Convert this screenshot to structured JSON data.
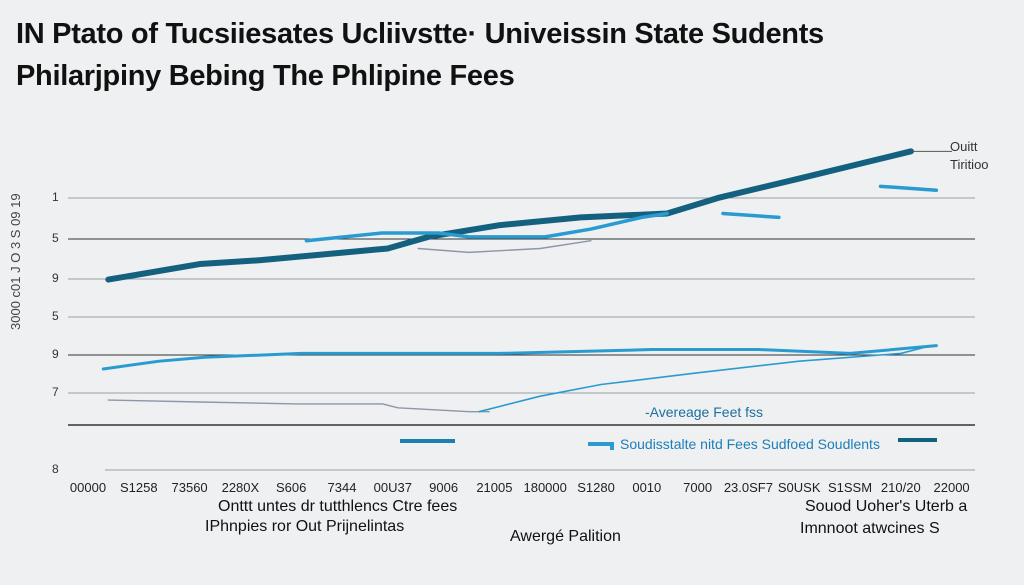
{
  "title": {
    "line1": "IN Ptato of Tucsiiesates Ucliivstte· Univeissin State Sudents",
    "line2": "Philarjpiny Bebing The Phlipine Fees"
  },
  "colors": {
    "dark": "#14607f",
    "light": "#2a9bd0",
    "gray": "#8c98a6",
    "grid": "#555555",
    "background": "#eef0f1"
  },
  "chart_data": {
    "type": "line",
    "title": "IN Ptato of Tucsiiesates Ucliivstte· Univeissin State Sudents Philarjpiny Bebing The Phlipine Fees",
    "xlabel": "Awergé Palition",
    "ylabel": "3000 c01 J O 3 S 09 19",
    "x_tick_labels": [
      "00000",
      "S1258",
      "73560",
      "2280X",
      "S606",
      "7344",
      "00U37",
      "9006",
      "21005",
      "180000",
      "S1280",
      "0010",
      "7000",
      "23.0SF7",
      "S0USK",
      "S1SSM",
      "210/20",
      "22000"
    ],
    "y_tick_labels": [
      "1",
      "5",
      "9",
      "5",
      "9",
      "7",
      "",
      "8"
    ],
    "grid": true,
    "series": [
      {
        "name": "Ouitt Tiritioo",
        "color": "#14607f",
        "points": [
          [
            0.4,
            4.9
          ],
          [
            2.2,
            5.3
          ],
          [
            3.4,
            5.4
          ],
          [
            5.9,
            5.7
          ],
          [
            6.7,
            6.0
          ],
          [
            8.1,
            6.3
          ],
          [
            9.7,
            6.5
          ],
          [
            11.4,
            6.6
          ],
          [
            12.4,
            7.0
          ],
          [
            14.0,
            7.5
          ],
          [
            16.2,
            8.2
          ]
        ]
      },
      {
        "color": "#2a9bd0",
        "points": [
          [
            4.3,
            5.9
          ],
          [
            5.8,
            6.1
          ],
          [
            6.9,
            6.1
          ],
          [
            7.5,
            6.0
          ],
          [
            9.0,
            6.0
          ],
          [
            9.9,
            6.2
          ],
          [
            10.9,
            6.5
          ],
          [
            11.4,
            6.6
          ]
        ]
      },
      {
        "color": "#2a9bd0",
        "points": [
          [
            12.5,
            6.6
          ],
          [
            13.6,
            6.5
          ]
        ]
      },
      {
        "color": "#2a9bd0",
        "points": [
          [
            15.6,
            7.3
          ],
          [
            16.7,
            7.2
          ]
        ]
      },
      {
        "color": "#8c98a6",
        "points": [
          [
            6.5,
            5.7
          ],
          [
            7.5,
            5.6
          ],
          [
            8.9,
            5.7
          ],
          [
            9.9,
            5.9
          ]
        ]
      },
      {
        "name": "Soudisstalte nitd Fees Sudfoed Soudlents",
        "color": "#2a9bd0",
        "points": [
          [
            0.3,
            2.6
          ],
          [
            1.4,
            2.8
          ],
          [
            2.3,
            2.9
          ],
          [
            4.2,
            3.0
          ],
          [
            8.1,
            3.0
          ],
          [
            11.1,
            3.1
          ],
          [
            13.2,
            3.1
          ],
          [
            15.0,
            3.0
          ],
          [
            16.7,
            3.2
          ]
        ]
      },
      {
        "name": "-Avereage Feet fss",
        "color": "#8c98a6",
        "points": [
          [
            0.4,
            1.8
          ],
          [
            2.2,
            1.75
          ],
          [
            4.1,
            1.7
          ],
          [
            5.8,
            1.7
          ],
          [
            6.1,
            1.6
          ],
          [
            7.5,
            1.5
          ],
          [
            7.9,
            1.5
          ]
        ]
      },
      {
        "color": "#2a9bd0",
        "points": [
          [
            7.7,
            1.5
          ],
          [
            8.9,
            1.9
          ],
          [
            10.1,
            2.2
          ],
          [
            12.0,
            2.5
          ],
          [
            14.0,
            2.8
          ],
          [
            16.0,
            3.0
          ],
          [
            16.6,
            3.2
          ]
        ]
      }
    ],
    "annotations": {
      "series_label": "Ouitt\nTiritioo",
      "avg_label": "-Avereage Feet fss",
      "legend_label": "Soudisstalte nitd Fees Sudfoed Soudlents"
    }
  },
  "bottom": {
    "left_line1": "Onttt untes dr tutthlencs Ctre fees",
    "left_line2": "IPhnpies ror Out Prijnelintas",
    "center": "Awergé Palition",
    "right_line1": "Souod Uoher's Uterb a",
    "right_line2": "Imnnoot atwcines S"
  }
}
